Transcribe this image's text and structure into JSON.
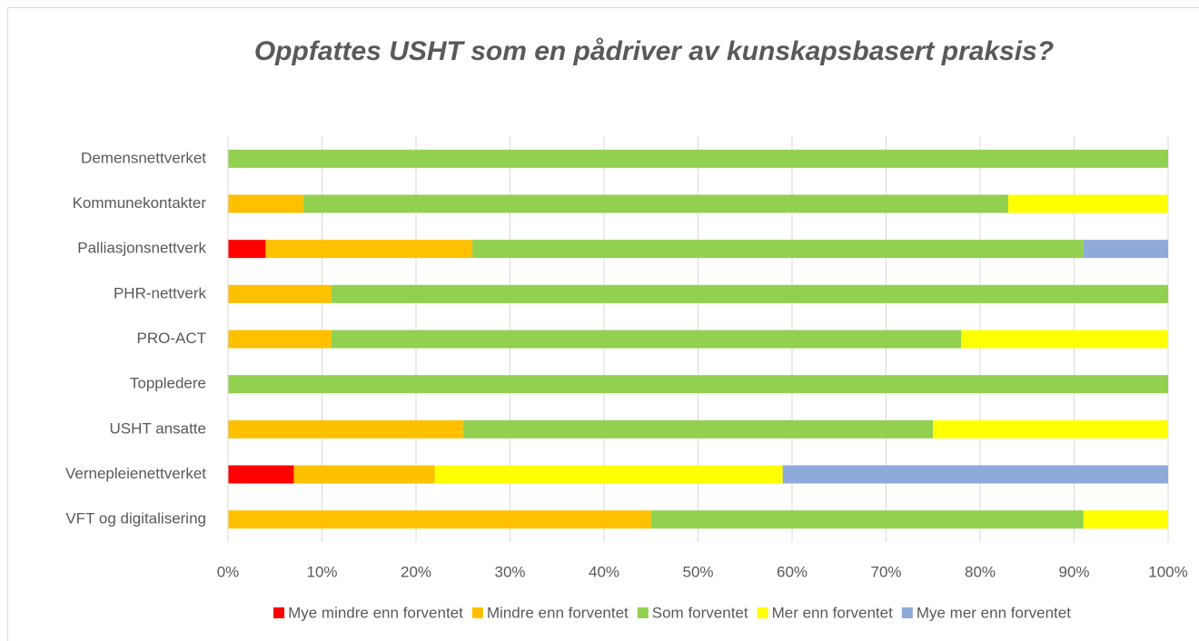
{
  "chart_data": {
    "type": "stacked_barh",
    "title": "Oppfattes USHT som en pådriver av kunskapsbasert praksis?",
    "categories": [
      "Demensnettverket",
      "Kommunekontakter",
      "Palliasjonsnettverk",
      "PHR-nettverk",
      "PRO-ACT",
      "Toppledere",
      "USHT ansatte",
      "Vernepleienettverket",
      "VFT og digitalisering"
    ],
    "series": [
      {
        "name": "Mye mindre enn forventet",
        "color": "#ff0000",
        "values": [
          0,
          0,
          4,
          0,
          0,
          0,
          0,
          7,
          0
        ]
      },
      {
        "name": "Mindre enn forventet",
        "color": "#ffc000",
        "values": [
          0,
          8,
          22,
          11,
          11,
          0,
          25,
          15,
          45
        ]
      },
      {
        "name": "Som forventet",
        "color": "#92d050",
        "values": [
          100,
          75,
          65,
          89,
          67,
          100,
          50,
          0,
          46
        ]
      },
      {
        "name": "Mer enn forventet",
        "color": "#ffff00",
        "values": [
          0,
          17,
          0,
          0,
          22,
          0,
          25,
          37,
          9
        ]
      },
      {
        "name": "Mye mer enn forventet",
        "color": "#8eaadb",
        "values": [
          0,
          0,
          9,
          0,
          0,
          0,
          0,
          41,
          0
        ]
      }
    ],
    "xlim": [
      0,
      100
    ],
    "xticks": [
      {
        "value": 0,
        "label": "0%"
      },
      {
        "value": 10,
        "label": "10%"
      },
      {
        "value": 20,
        "label": "20%"
      },
      {
        "value": 30,
        "label": "30%"
      },
      {
        "value": 40,
        "label": "40%"
      },
      {
        "value": 50,
        "label": "50%"
      },
      {
        "value": 60,
        "label": "60%"
      },
      {
        "value": 70,
        "label": "70%"
      },
      {
        "value": 80,
        "label": "80%"
      },
      {
        "value": 90,
        "label": "90%"
      },
      {
        "value": 100,
        "label": "100%"
      }
    ],
    "grid": true,
    "legend": "bottom"
  }
}
